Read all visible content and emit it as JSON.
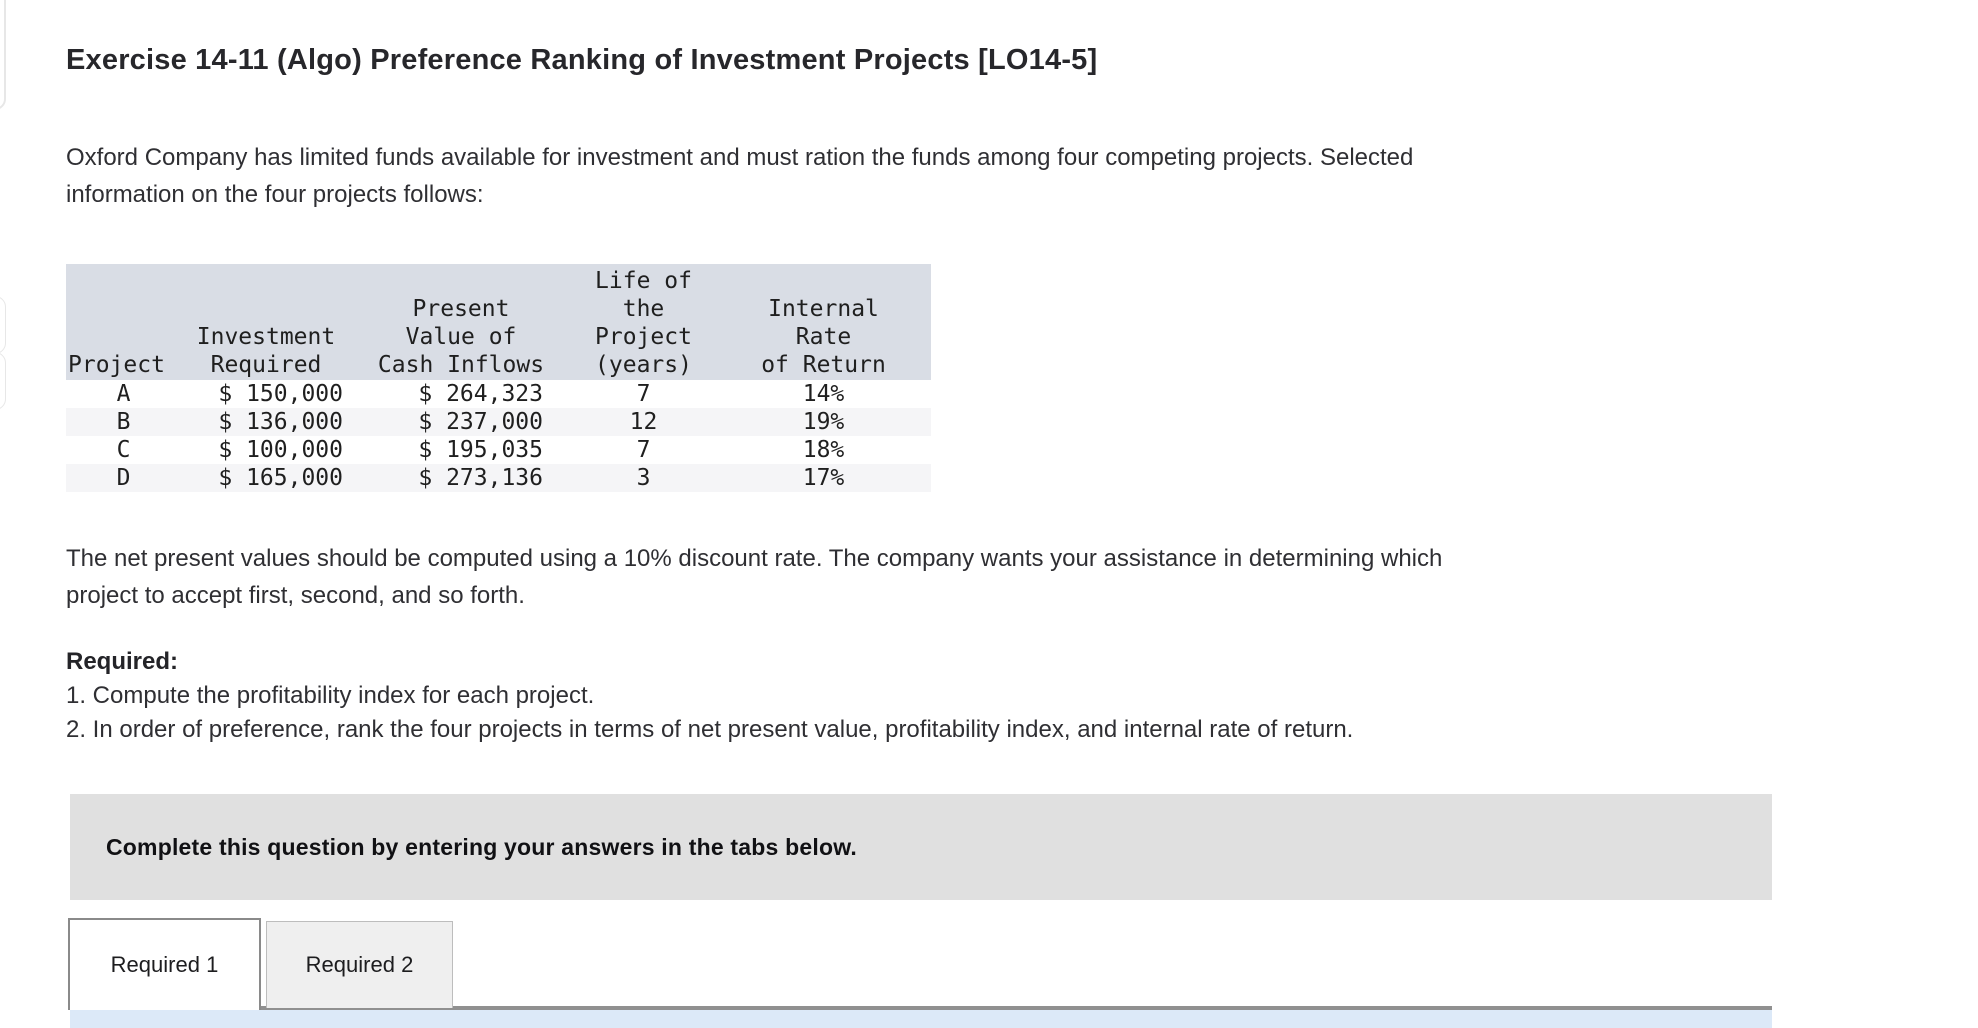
{
  "header": {
    "title": "Exercise 14-11 (Algo) Preference Ranking of Investment Projects [LO14-5]"
  },
  "intro": {
    "text": "Oxford Company has limited funds available for investment and must ration the funds among four competing projects. Selected\ninformation on the four projects follows:"
  },
  "table": {
    "headers": [
      "Project",
      "Investment\nRequired",
      "Present\nValue of\nCash Inflows",
      "Life of\nthe\nProject\n(years)",
      "Internal\nRate\nof Return"
    ],
    "rows": [
      [
        "A",
        "$ 150,000",
        "$ 264,323",
        "7",
        "14%"
      ],
      [
        "B",
        "$ 136,000",
        "$ 237,000",
        "12",
        "19%"
      ],
      [
        "C",
        "$ 100,000",
        "$ 195,035",
        "7",
        "18%"
      ],
      [
        "D",
        "$ 165,000",
        "$ 273,136",
        "3",
        "17%"
      ]
    ]
  },
  "discussion": {
    "text": "The net present values should be computed using a 10% discount rate. The company wants your assistance in determining which\nproject to accept first, second, and so forth."
  },
  "required": {
    "label": "Required:",
    "items": [
      "1. Compute the profitability index for each project.",
      "2. In order of preference, rank the four projects in terms of net present value, profitability index, and internal rate of return."
    ]
  },
  "instruction_box": {
    "text": "Complete this question by entering your answers in the tabs below."
  },
  "tabs": [
    {
      "label": "Required 1",
      "active": true
    },
    {
      "label": "Required 2",
      "active": false
    }
  ],
  "colors": {
    "table_header_bg": "#d9dde5",
    "table_alt_row_bg": "#f5f5f7",
    "instruction_box_bg": "#e0e0e0",
    "tab_active_border": "#8a8a8a",
    "tab_inactive_bg": "#efefef",
    "tab_divider_line": "#909090",
    "tab_panel_strip": "#dce9f8",
    "body_text": "#2f2f33"
  }
}
